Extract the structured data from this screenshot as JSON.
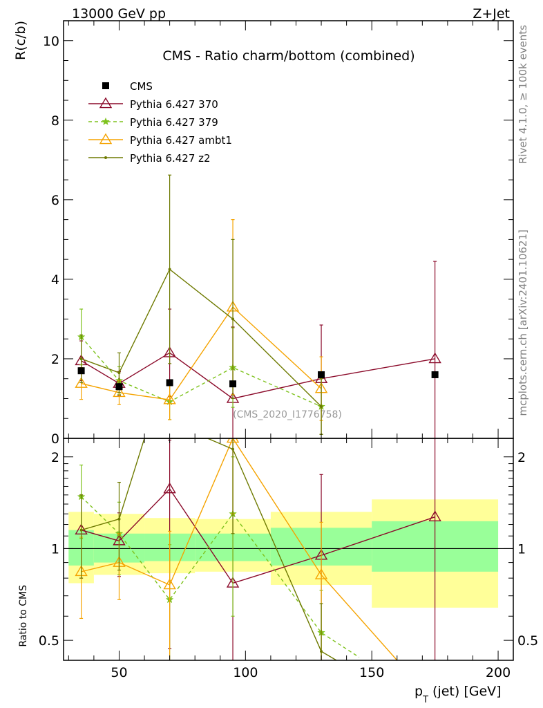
{
  "header": {
    "left": "13000 GeV pp",
    "right": "Z+Jet",
    "title": "CMS - Ratio charm/bottom (combined)",
    "analysis_id": "(CMS_2020_I1776758)",
    "side_top": "Rivet 4.1.0, ≥ 100k events",
    "side_bottom": "mcplots.cern.ch [arXiv:2401.10621]"
  },
  "colors": {
    "data": "#000000",
    "p370": "#8b0a2a",
    "p379": "#7ec21d",
    "ambt1": "#f5a300",
    "z2": "#6e7a00",
    "band_inner": "#99ff99",
    "band_outer": "#ffff99"
  },
  "chart_data": [
    {
      "type": "scatter",
      "name": "main",
      "title": "CMS - Ratio charm/bottom (combined)",
      "xlabel": "p_T (jet) [GeV]",
      "ylabel": "R(c/b)",
      "xlim": [
        28,
        206
      ],
      "ylim": [
        0,
        10.5
      ],
      "yticks": [
        "0",
        "2",
        "4",
        "6",
        "8",
        "10"
      ],
      "legend_position": "top-left",
      "legend": [
        "CMS",
        "Pythia 6.427 370",
        "Pythia 6.427 379",
        "Pythia 6.427 ambt1",
        "Pythia 6.427 z2"
      ],
      "data_points": {
        "x": [
          35,
          50,
          70,
          95,
          130,
          175
        ],
        "y": [
          1.7,
          1.3,
          1.4,
          1.37,
          1.6,
          1.6
        ]
      },
      "series": [
        {
          "key": "p370",
          "name": "Pythia 6.427 370",
          "style": "solid",
          "marker": "triangle-open",
          "x": [
            35,
            50,
            70,
            95,
            130,
            175
          ],
          "y": [
            1.95,
            1.38,
            2.15,
            1.0,
            1.5,
            2.0
          ],
          "err_lo": [
            0.5,
            0.3,
            1.1,
            1.0,
            1.4,
            2.0
          ],
          "err_hi": [
            0.5,
            0.3,
            1.1,
            1.8,
            1.35,
            2.45
          ]
        },
        {
          "key": "p379",
          "name": "Pythia 6.427 379",
          "style": "dashed",
          "marker": "star",
          "x": [
            35,
            50,
            70,
            95,
            130
          ],
          "y": [
            2.55,
            1.45,
            0.92,
            1.78,
            0.8
          ],
          "err_lo": [
            0.7,
            0.35,
            0.45,
            1.0,
            0.7
          ],
          "err_hi": [
            0.7,
            0.35,
            0.45,
            1.0,
            0.7
          ]
        },
        {
          "key": "ambt1",
          "name": "Pythia 6.427 ambt1",
          "style": "solid",
          "marker": "triangle-open",
          "x": [
            35,
            50,
            70,
            95,
            130
          ],
          "y": [
            1.38,
            1.15,
            0.97,
            3.3,
            1.25
          ],
          "err_lo": [
            0.4,
            0.3,
            0.5,
            2.2,
            0.8
          ],
          "err_hi": [
            0.4,
            0.3,
            0.5,
            2.2,
            0.8
          ]
        },
        {
          "key": "z2",
          "name": "Pythia 6.427 z2",
          "style": "solid",
          "marker": "dot",
          "x": [
            35,
            50,
            70,
            95,
            130
          ],
          "y": [
            2.0,
            1.65,
            4.25,
            3.0,
            0.8
          ],
          "err_lo": [
            0.6,
            0.5,
            2.37,
            2.0,
            0.7
          ],
          "err_hi": [
            0.6,
            0.5,
            2.37,
            2.0,
            0.7
          ]
        }
      ]
    },
    {
      "type": "scatter",
      "name": "ratio",
      "xlabel": "p_T (jet) [GeV]",
      "ylabel": "Ratio to CMS",
      "xlim": [
        28,
        206
      ],
      "ylim": [
        0.43,
        2.3
      ],
      "yscale": "log",
      "yticks": [
        "0.5",
        "1",
        "2"
      ],
      "xticks": [
        "50",
        "100",
        "150",
        "200"
      ],
      "bands": [
        {
          "x0": 30,
          "x1": 40,
          "inner": [
            0.88,
            1.15
          ],
          "outer": [
            0.77,
            1.32
          ]
        },
        {
          "x0": 40,
          "x1": 60,
          "inner": [
            0.9,
            1.12
          ],
          "outer": [
            0.82,
            1.3
          ]
        },
        {
          "x0": 60,
          "x1": 80,
          "inner": [
            0.91,
            1.12
          ],
          "outer": [
            0.83,
            1.26
          ]
        },
        {
          "x0": 80,
          "x1": 110,
          "inner": [
            0.91,
            1.12
          ],
          "outer": [
            0.84,
            1.25
          ]
        },
        {
          "x0": 110,
          "x1": 150,
          "inner": [
            0.88,
            1.17
          ],
          "outer": [
            0.76,
            1.32
          ]
        },
        {
          "x0": 150,
          "x1": 200,
          "inner": [
            0.84,
            1.23
          ],
          "outer": [
            0.64,
            1.45
          ]
        }
      ],
      "series": [
        {
          "key": "p370",
          "x": [
            35,
            50,
            70,
            95,
            130,
            175
          ],
          "y": [
            1.15,
            1.06,
            1.57,
            0.77,
            0.95,
            1.27
          ],
          "err_lo": [
            0.35,
            0.25,
            1.1,
            0.5,
            0.7,
            0.9
          ],
          "err_hi": [
            0.35,
            0.25,
            0.7,
            1.5,
            0.8,
            1.6
          ]
        },
        {
          "key": "p379",
          "x": [
            35,
            50,
            70,
            95,
            130,
            145
          ],
          "y": [
            1.48,
            1.12,
            0.68,
            1.3,
            0.53,
            0.44
          ],
          "err_lo": [
            0.4,
            0.3,
            0.35,
            0.7,
            0.2,
            0.0
          ],
          "err_hi": [
            0.4,
            0.3,
            0.35,
            0.7,
            0.2,
            0.0
          ]
        },
        {
          "key": "ambt1",
          "x": [
            35,
            50,
            70,
            95,
            130,
            160
          ],
          "y": [
            0.84,
            0.9,
            0.76,
            2.3,
            0.82,
            0.43
          ],
          "err_lo": [
            0.25,
            0.22,
            0.38,
            1.0,
            0.4,
            0.0
          ],
          "err_hi": [
            0.25,
            0.22,
            0.38,
            1.0,
            0.4,
            0.0
          ]
        },
        {
          "key": "z2",
          "x": [
            35,
            50,
            60,
            85,
            95,
            130,
            136
          ],
          "y": [
            1.15,
            1.25,
            2.3,
            2.3,
            2.12,
            0.46,
            0.43
          ],
          "err_lo": [
            0.35,
            0.4,
            0,
            0,
            1.0,
            0.2,
            0
          ],
          "err_hi": [
            0.35,
            0.4,
            0,
            0,
            1.0,
            0.2,
            0
          ]
        }
      ]
    }
  ]
}
